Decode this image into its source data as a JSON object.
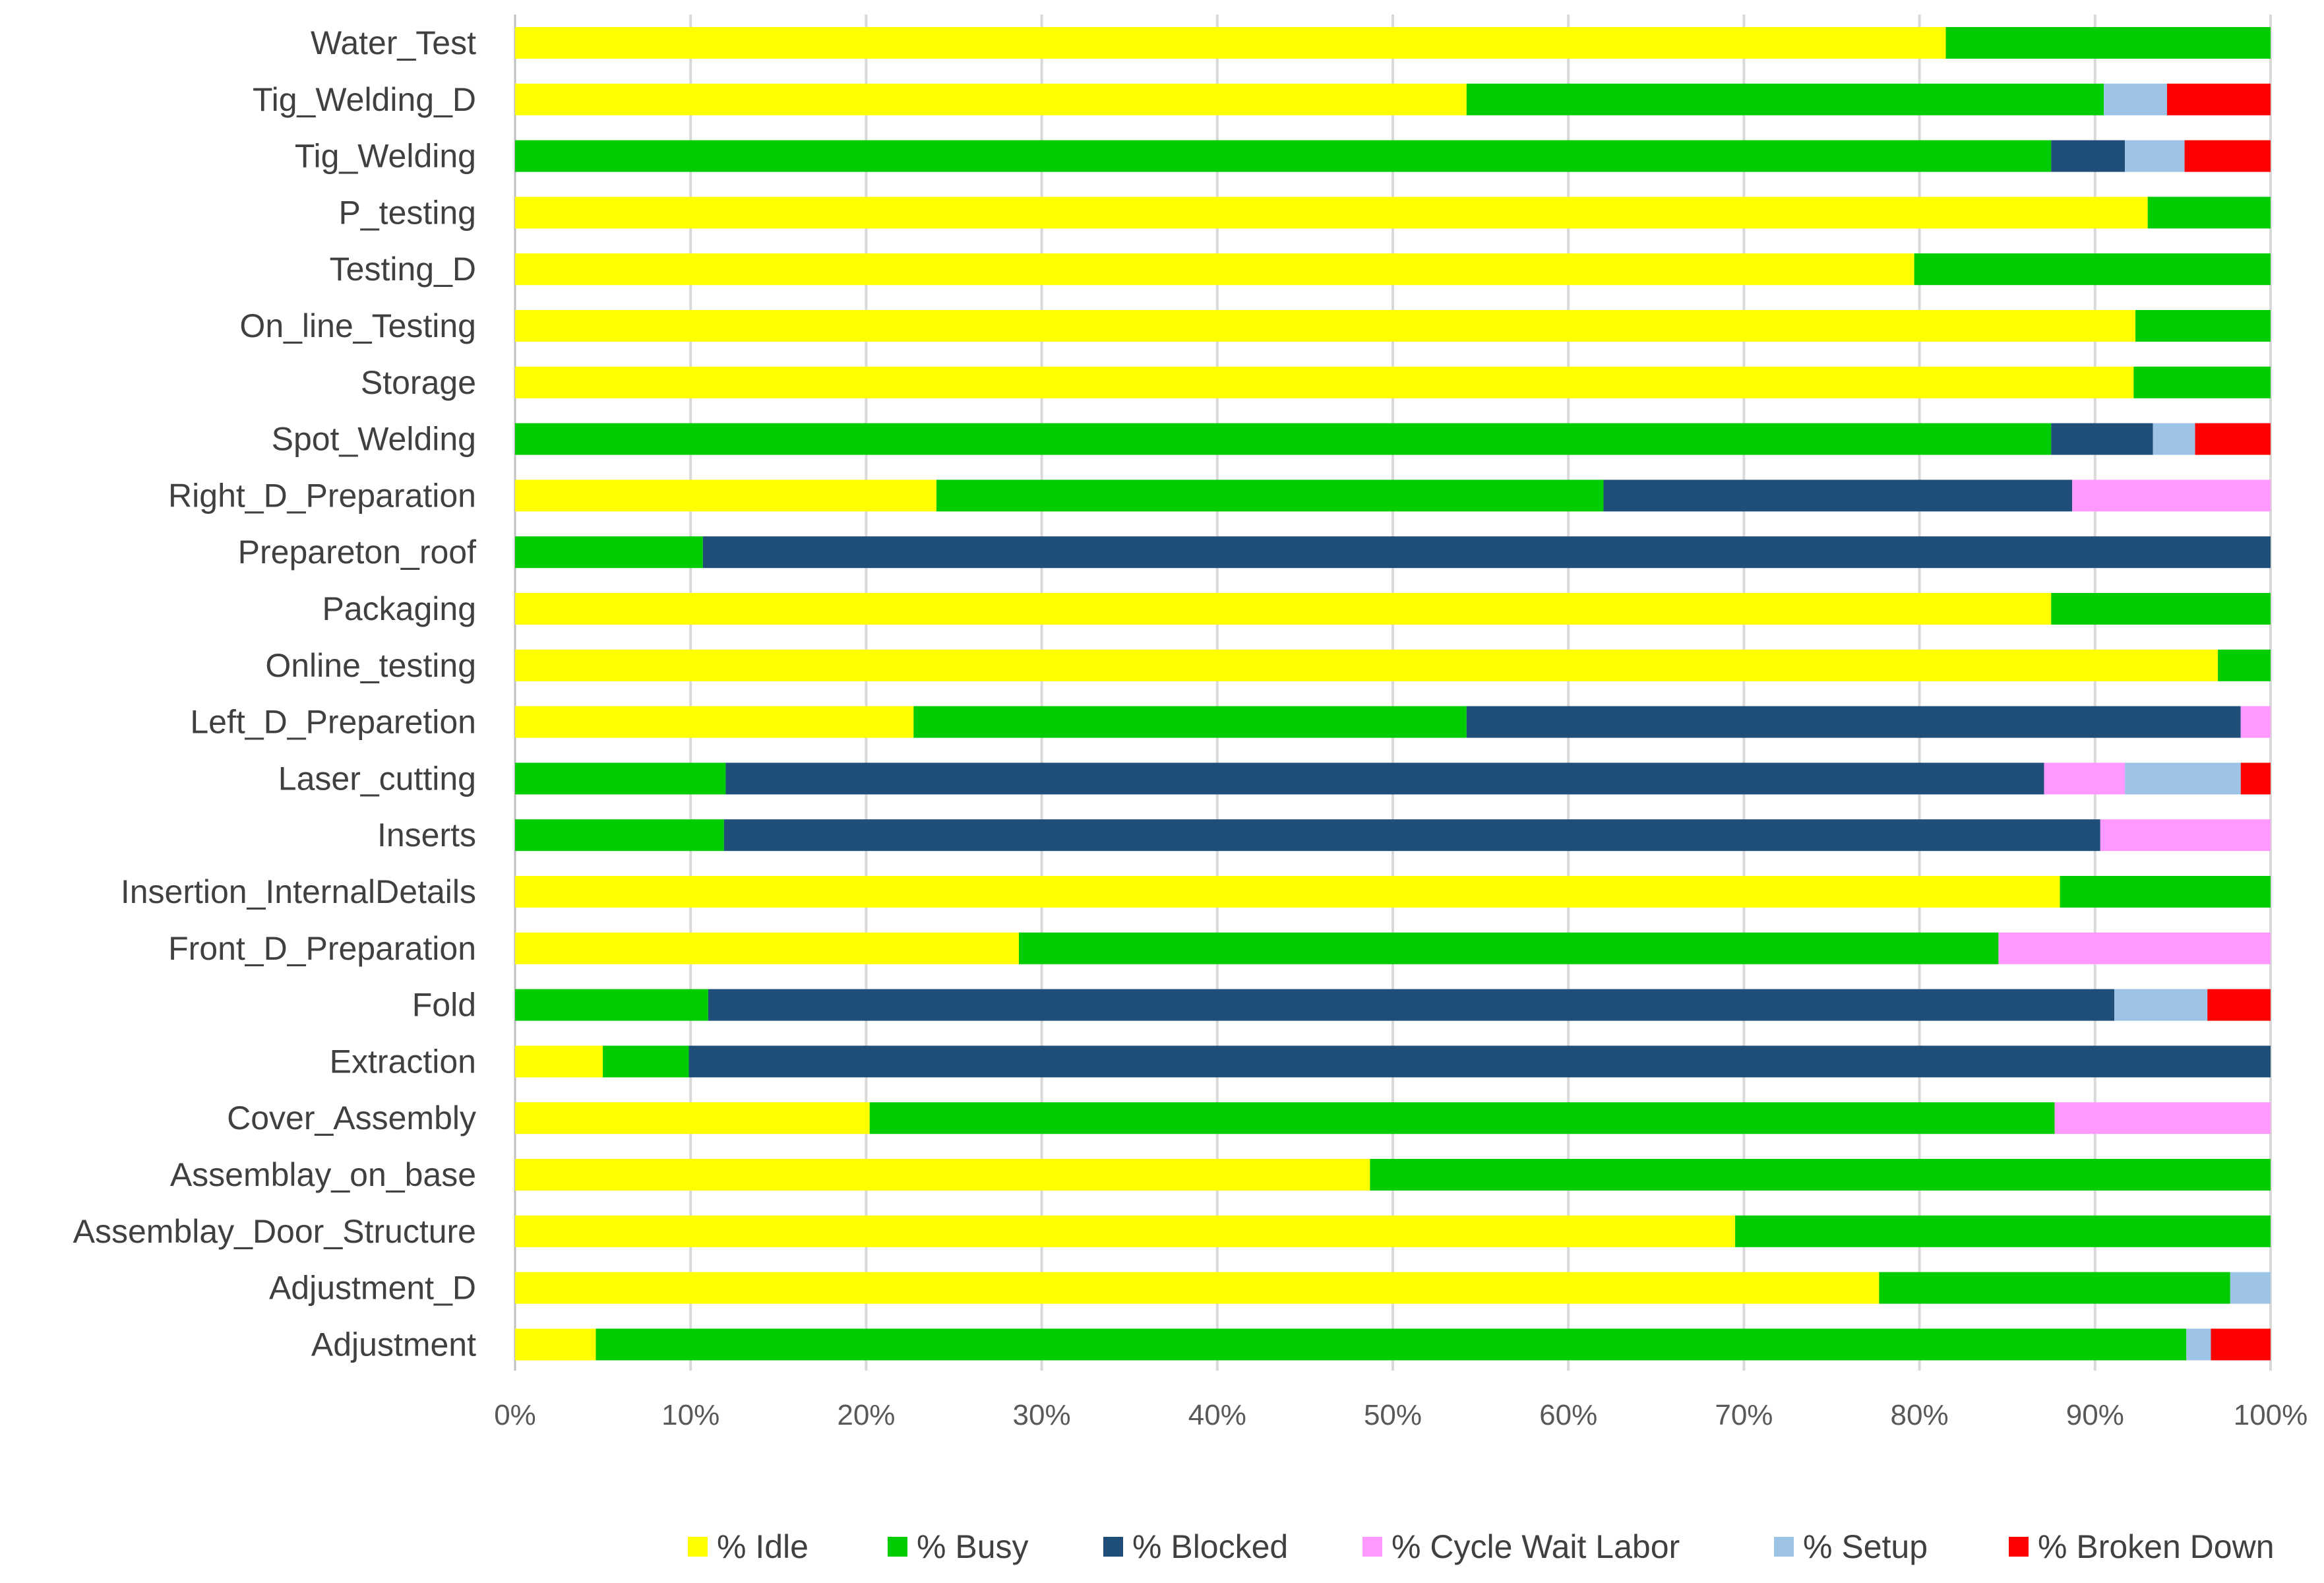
{
  "chart_data": {
    "type": "bar",
    "orientation": "horizontal",
    "stacked": "percent",
    "title": "",
    "xlabel": "",
    "ylabel": "",
    "xlim": [
      0,
      100
    ],
    "x_ticks": [
      "0%",
      "10%",
      "20%",
      "30%",
      "40%",
      "50%",
      "60%",
      "70%",
      "80%",
      "90%",
      "100%"
    ],
    "grid": "vertical",
    "legend_position": "bottom",
    "categories": [
      "Water_Test",
      "Tig_Welding_D",
      "Tig_Welding",
      "P_testing",
      "Testing_D",
      "On_line_Testing",
      "Storage",
      "Spot_Welding",
      "Right_D_Preparation",
      "Prepareton_roof",
      "Packaging",
      "Online_testing",
      "Left_D_Preparetion",
      "Laser_cutting",
      "Inserts",
      "Insertion_InternalDetails",
      "Front_D_Preparation",
      "Fold",
      "Extraction",
      "Cover_Assembly",
      "Assemblay_on_base",
      "Assemblay_Door_Structure",
      "Adjustment_D",
      "Adjustment"
    ],
    "series": [
      {
        "name": "% Idle",
        "color": "#ffff00",
        "values": [
          81.5,
          54.2,
          0,
          93,
          79.7,
          92.3,
          92.2,
          0,
          24,
          0,
          87.5,
          97,
          22.7,
          0,
          0,
          88,
          28.7,
          0,
          5,
          20.2,
          48.7,
          69.5,
          77.7,
          4.6
        ]
      },
      {
        "name": "% Busy",
        "color": "#00cc00",
        "values": [
          18.5,
          36.3,
          87.5,
          7,
          20.3,
          7.7,
          7.8,
          87.5,
          38,
          10.7,
          12.5,
          3,
          31.5,
          12,
          11.9,
          12,
          55.8,
          11,
          4.9,
          67.5,
          51.3,
          30.5,
          20,
          90.6
        ]
      },
      {
        "name": "% Blocked",
        "color": "#1f4e79",
        "values": [
          0,
          0,
          4.2,
          0,
          0,
          0,
          0,
          5.8,
          26.7,
          89.3,
          0,
          0,
          44.1,
          75.1,
          78.4,
          0,
          0,
          80.1,
          90.1,
          0,
          0,
          0,
          0,
          0
        ]
      },
      {
        "name": "% Cycle Wait Labor",
        "color": "#ff99ff",
        "values": [
          0,
          0,
          0,
          0,
          0,
          0,
          0,
          0,
          11.3,
          0,
          0,
          0,
          1.7,
          4.6,
          9.7,
          0,
          15.5,
          0,
          0,
          12.3,
          0,
          0,
          0,
          0
        ]
      },
      {
        "name": "% Setup",
        "color": "#9dc3e6",
        "values": [
          0,
          3.6,
          3.4,
          0,
          0,
          0,
          0,
          2.4,
          0,
          0,
          0,
          0,
          0,
          6.6,
          0,
          0,
          0,
          5.3,
          0,
          0,
          0,
          0,
          2.3,
          1.4
        ]
      },
      {
        "name": "% Broken Down",
        "color": "#ff0000",
        "values": [
          0,
          5.9,
          4.9,
          0,
          0,
          0,
          0,
          4.3,
          0,
          0,
          0,
          0,
          0,
          1.7,
          0,
          0,
          0,
          3.6,
          0,
          0,
          0,
          0,
          0,
          3.4
        ]
      }
    ]
  }
}
